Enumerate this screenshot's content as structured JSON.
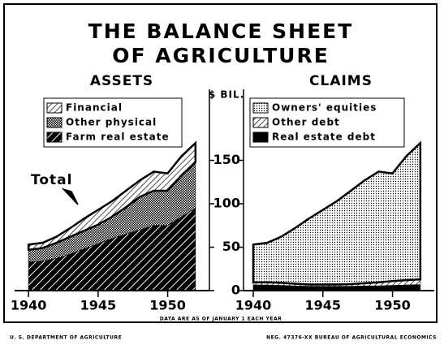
{
  "title": [
    "THE BALANCE SHEET",
    "OF AGRICULTURE"
  ],
  "note": "DATA ARE AS OF JANUARY 1 EACH YEAR",
  "footer_left": "U. S. DEPARTMENT OF AGRICULTURE",
  "footer_right": "NEG. 47376-XX   BUREAU OF AGRICULTURAL ECONOMICS",
  "y_axis_label": "$ BIL.",
  "chart_data": [
    {
      "type": "stacked_area",
      "title": "ASSETS",
      "annotation": "Total",
      "x": [
        1940,
        1941,
        1942,
        1943,
        1944,
        1945,
        1946,
        1947,
        1948,
        1949,
        1950,
        1951,
        1952
      ],
      "xlim": [
        1939,
        1953
      ],
      "xticks": [
        1940,
        1945,
        1950
      ],
      "ylim": [
        0,
        215
      ],
      "yticks": [
        0,
        50,
        100,
        150
      ],
      "series": [
        {
          "name": "Farm real estate",
          "color": "#000000",
          "pattern": "stripes",
          "values": [
            33,
            34,
            37,
            42,
            48,
            54,
            60,
            65,
            70,
            75,
            75,
            85,
            95
          ]
        },
        {
          "name": "Other physical",
          "color": "#000000",
          "pattern": "crosshatch",
          "values": [
            14,
            15,
            18,
            20,
            21,
            22,
            25,
            31,
            38,
            40,
            40,
            48,
            53
          ]
        },
        {
          "name": "Financial",
          "color": "#000000",
          "pattern": "hatch",
          "values": [
            6,
            6,
            7,
            10,
            14,
            17,
            18,
            19,
            19,
            22,
            20,
            22,
            22
          ]
        }
      ]
    },
    {
      "type": "stacked_area",
      "title": "CLAIMS",
      "x": [
        1940,
        1941,
        1942,
        1943,
        1944,
        1945,
        1946,
        1947,
        1948,
        1949,
        1950,
        1951,
        1952
      ],
      "xlim": [
        1939.3,
        1953
      ],
      "xticks": [
        1940,
        1945,
        1950
      ],
      "ylim": [
        0,
        215
      ],
      "yticks": [
        0,
        50,
        100,
        150
      ],
      "series": [
        {
          "name": "Real estate debt",
          "color": "#000000",
          "pattern": "solid",
          "values": [
            6.5,
            6.5,
            6,
            5.5,
            5,
            5,
            5,
            5,
            5.5,
            5.5,
            6,
            6.5,
            7
          ]
        },
        {
          "name": "Other debt",
          "color": "#000000",
          "pattern": "hatch",
          "values": [
            3,
            3,
            3,
            2.5,
            2,
            2,
            2,
            2.5,
            3,
            4,
            5,
            5.5,
            6
          ]
        },
        {
          "name": "Owners' equities",
          "color": "#000000",
          "pattern": "dots",
          "values": [
            43.5,
            45.5,
            53,
            64,
            76,
            86,
            96,
            107.5,
            118.5,
            127.5,
            124,
            143,
            157
          ]
        }
      ]
    }
  ]
}
